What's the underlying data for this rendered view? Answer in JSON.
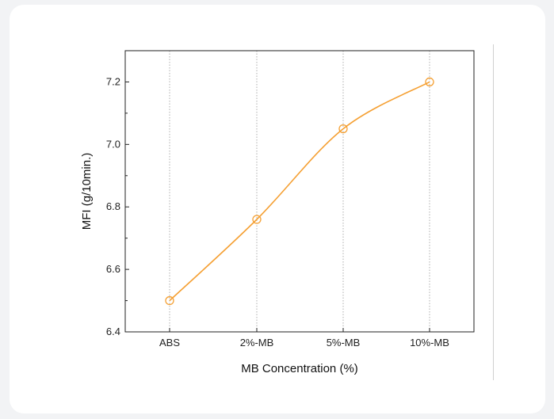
{
  "chart_data": {
    "type": "line",
    "categories": [
      "ABS",
      "2%-MB",
      "5%-MB",
      "10%-MB"
    ],
    "series": [
      {
        "values": [
          6.5,
          6.76,
          7.05,
          7.2
        ],
        "color": "#f5a033",
        "marker": "open-circle",
        "smoothed": true
      }
    ],
    "xlabel": "MB Concentration (%)",
    "ylabel": "MFI (g/10min.)",
    "ylim": [
      6.4,
      7.3
    ],
    "yticks": [
      6.4,
      6.6,
      6.8,
      7.0,
      7.2
    ],
    "ytick_labels": [
      "6.4",
      "6.6",
      "6.8",
      "7.0",
      "7.2"
    ],
    "grid": "vertical dotted lines at categories",
    "legend": "none"
  }
}
